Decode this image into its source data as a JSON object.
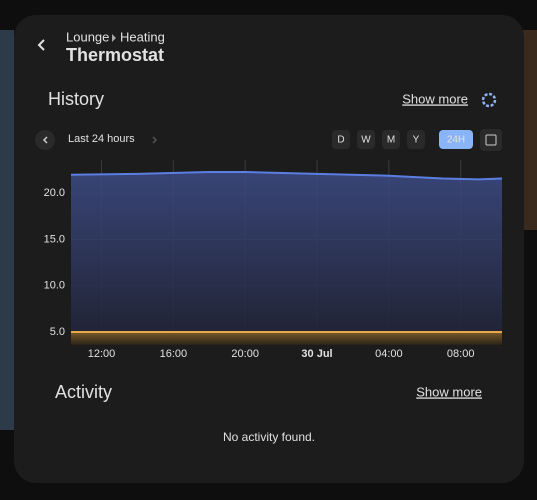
{
  "header": {
    "breadcrumb": [
      "Lounge",
      "Heating"
    ],
    "title": "Thermostat"
  },
  "history": {
    "title": "History",
    "show_more": "Show more",
    "range_label": "Last 24 hours",
    "periods": [
      "D",
      "W",
      "M",
      "Y",
      "24H"
    ]
  },
  "chart_data": {
    "type": "line",
    "x": [
      10.3,
      14,
      18,
      20,
      24,
      28,
      31,
      33,
      34.3
    ],
    "xlim": [
      10.3,
      34.3
    ],
    "xticks": [
      {
        "value": 12,
        "label": "12:00"
      },
      {
        "value": 16,
        "label": "16:00"
      },
      {
        "value": 20,
        "label": "20:00"
      },
      {
        "value": 24,
        "label": "30 Jul"
      },
      {
        "value": 28,
        "label": "04:00"
      },
      {
        "value": 32,
        "label": "08:00"
      }
    ],
    "ylim": [
      3.6,
      23.6
    ],
    "yticks": [
      {
        "value": 5,
        "label": "5.0"
      },
      {
        "value": 10,
        "label": "10.0"
      },
      {
        "value": 15,
        "label": "15.0"
      },
      {
        "value": 20,
        "label": "20.0"
      }
    ],
    "grid": true,
    "series": [
      {
        "color": "#5b7fe0",
        "values": [
          22.0,
          22.1,
          22.3,
          22.3,
          22.1,
          21.9,
          21.6,
          21.5,
          21.6
        ]
      },
      {
        "color": "#e8a94a",
        "values": [
          5,
          5,
          5,
          5,
          5,
          5,
          5,
          5,
          5
        ]
      }
    ]
  },
  "activity": {
    "title": "Activity",
    "show_more": "Show more",
    "empty": "No activity found."
  }
}
